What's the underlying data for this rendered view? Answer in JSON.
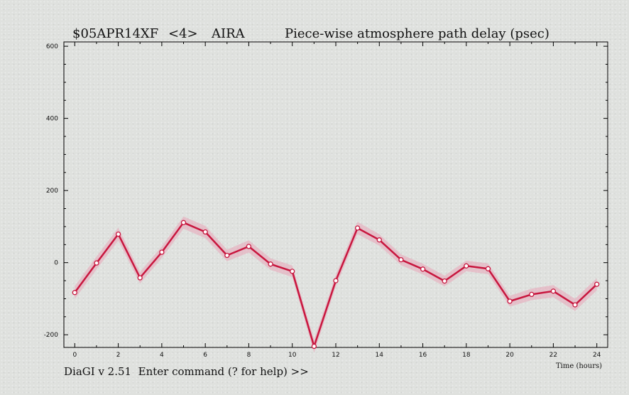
{
  "header": {
    "experiment": "$05APR14XF",
    "band": "<4>",
    "station": "AIRA",
    "plot_title": "Piece-wise atmosphere path delay (psec)"
  },
  "prompt": {
    "text": "DiaGI v 2.51  Enter command (? for help) >>"
  },
  "colors": {
    "line": "#c8163e",
    "band": "#e8a6b8",
    "marker_fill": "#ffffff",
    "axis": "#000000"
  },
  "chart_data": {
    "type": "line",
    "title": "Piece-wise atmosphere path delay (psec)",
    "xlabel": "Time (hours)",
    "ylabel": "",
    "xlim": [
      -0.5,
      24.5
    ],
    "ylim": [
      -235,
      612
    ],
    "x_ticks": [
      0,
      2,
      4,
      6,
      8,
      10,
      12,
      14,
      16,
      18,
      20,
      22,
      24
    ],
    "x_tick_labels": [
      "0",
      "2",
      "4",
      "6",
      "8",
      "10",
      "12",
      "14",
      "16",
      "18",
      "20",
      "22",
      "24"
    ],
    "y_ticks": [
      -200,
      0,
      200,
      400,
      600
    ],
    "y_tick_labels": [
      "-200",
      "0",
      "200",
      "400",
      "600"
    ],
    "grid": false,
    "series": [
      {
        "x": [
          0,
          1,
          2,
          3,
          4,
          5,
          6,
          7,
          8,
          9,
          10,
          11,
          12,
          13,
          14,
          15,
          16,
          17,
          18,
          19,
          20,
          21,
          22,
          23,
          24
        ],
        "y": [
          -83,
          -1,
          79,
          -42,
          29,
          111,
          85,
          20,
          45,
          -4,
          -24,
          -232,
          -50,
          96,
          63,
          8,
          -18,
          -51,
          -9,
          -17,
          -107,
          -88,
          -79,
          -117,
          -60
        ],
        "error": [
          18,
          18,
          18,
          16,
          16,
          17,
          17,
          16,
          17,
          16,
          16,
          18,
          16,
          17,
          16,
          15,
          15,
          15,
          15,
          15,
          15,
          16,
          17,
          17,
          17
        ]
      }
    ]
  }
}
